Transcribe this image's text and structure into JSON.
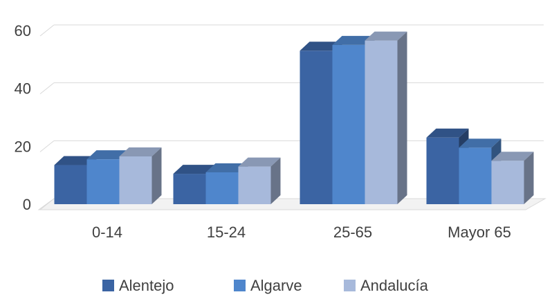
{
  "chart_data": {
    "type": "bar",
    "title": "",
    "xlabel": "",
    "ylabel": "",
    "categories": [
      "0-14",
      "15-24",
      "25-65",
      "Mayor 65"
    ],
    "series": [
      {
        "name": "Alentejo",
        "values": [
          13.5,
          10.5,
          53,
          23
        ]
      },
      {
        "name": "Algarve",
        "values": [
          15.5,
          11,
          55,
          19.5
        ]
      },
      {
        "name": "Andalucía",
        "values": [
          16.5,
          13,
          56.5,
          15
        ]
      }
    ],
    "ylim": [
      0,
      60
    ],
    "yticks": [
      0,
      20,
      40,
      60
    ],
    "grid": true,
    "legend_position": "bottom",
    "colors": {
      "Alentejo": "#3b64a3",
      "Algarve": "#4f86cc",
      "Andalucía": "#a7b9db"
    }
  }
}
